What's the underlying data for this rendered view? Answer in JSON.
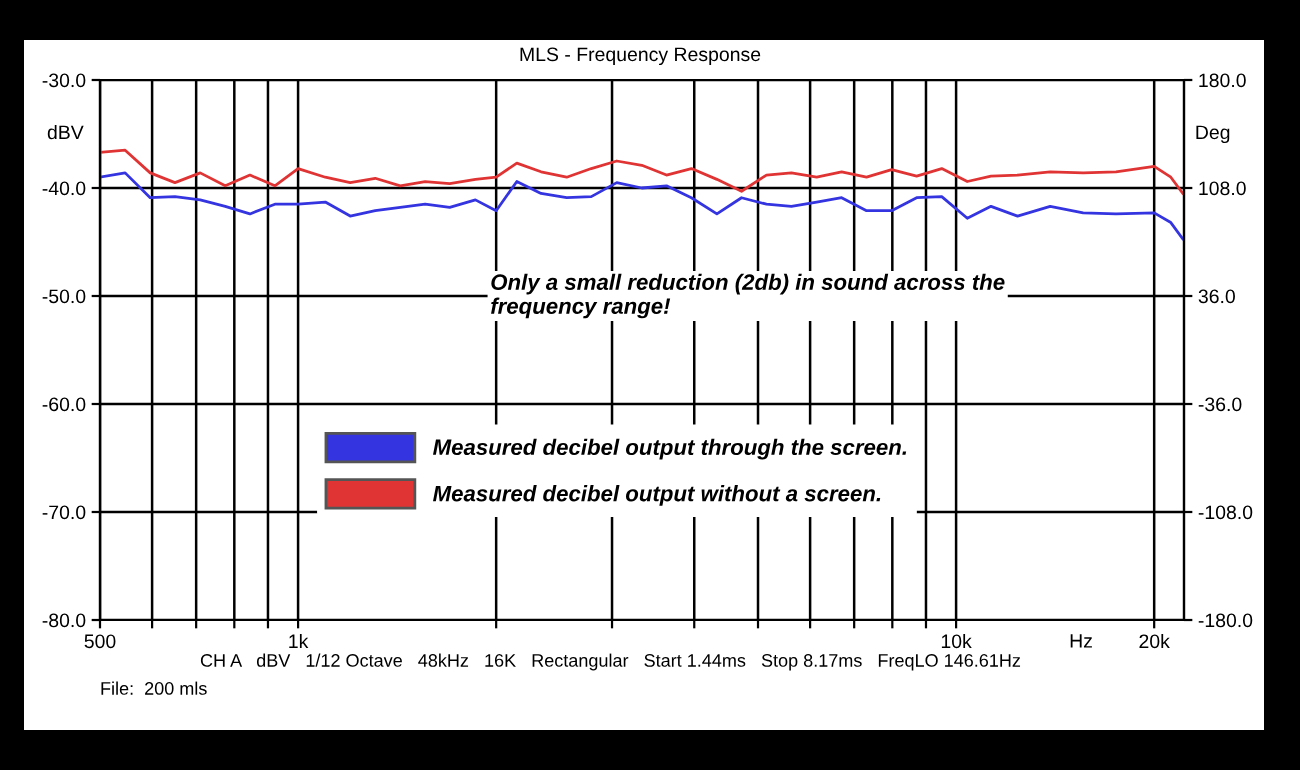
{
  "chart_data": {
    "type": "line",
    "title": "MLS - Frequency Response",
    "ylabel": "dBV",
    "y2label": "Deg",
    "xlabel": "Hz",
    "x": [
      500,
      546,
      596,
      650,
      710,
      775,
      845,
      922,
      1000,
      1100,
      1200,
      1310,
      1430,
      1560,
      1700,
      1860,
      2000,
      2150,
      2340,
      2560,
      2790,
      3050,
      3330,
      3630,
      3960,
      4330,
      4720,
      5150,
      5620,
      6140,
      6700,
      7310,
      7980,
      8710,
      9510,
      10400,
      11300,
      12400,
      13900,
      15600,
      17500,
      20000,
      21200,
      22100
    ],
    "series": [
      {
        "name": "Measured decibel output through the screen.",
        "color": "#3434e0",
        "values": [
          -39.0,
          -38.6,
          -40.9,
          -40.8,
          -41.1,
          -41.7,
          -42.4,
          -41.5,
          -41.5,
          -41.3,
          -42.6,
          -42.1,
          -41.8,
          -41.5,
          -41.8,
          -41.1,
          -42.1,
          -39.4,
          -40.5,
          -40.9,
          -40.8,
          -39.5,
          -40.0,
          -39.8,
          -40.9,
          -42.4,
          -40.9,
          -41.5,
          -41.7,
          -41.3,
          -40.9,
          -42.1,
          -42.1,
          -40.9,
          -40.8,
          -42.8,
          -41.7,
          -42.6,
          -41.7,
          -42.3,
          -42.4,
          -42.3,
          -43.2,
          -44.7
        ]
      },
      {
        "name": "Measured decibel output without a screen.",
        "color": "#e03434",
        "values": [
          -36.7,
          -36.5,
          -38.6,
          -39.5,
          -38.6,
          -39.8,
          -38.8,
          -39.8,
          -38.2,
          -39.0,
          -39.5,
          -39.1,
          -39.8,
          -39.4,
          -39.6,
          -39.2,
          -39.0,
          -37.7,
          -38.5,
          -39.0,
          -38.2,
          -37.5,
          -37.9,
          -38.8,
          -38.2,
          -39.2,
          -40.3,
          -38.8,
          -38.6,
          -39.0,
          -38.5,
          -39.0,
          -38.3,
          -38.9,
          -38.2,
          -39.4,
          -38.9,
          -38.8,
          -38.5,
          -38.6,
          -38.5,
          -38.0,
          -39.0,
          -40.5
        ]
      }
    ],
    "log": "x",
    "xlim": [
      500,
      22200
    ],
    "xticks": [
      500,
      {
        "value": 600,
        "label": null
      },
      {
        "value": 700,
        "label": null
      },
      {
        "value": 800,
        "label": null
      },
      {
        "value": 900,
        "label": null
      },
      {
        "value": 1000,
        "label": "1k"
      },
      {
        "value": 2000,
        "label": null
      },
      {
        "value": 3000,
        "label": null
      },
      {
        "value": 4000,
        "label": null
      },
      {
        "value": 5000,
        "label": null
      },
      {
        "value": 6000,
        "label": null
      },
      {
        "value": 7000,
        "label": null
      },
      {
        "value": 8000,
        "label": null
      },
      {
        "value": 9000,
        "label": null
      },
      {
        "value": 10000,
        "label": "10k"
      },
      {
        "value": 20000,
        "label": "20k"
      }
    ],
    "ylim": [
      -80,
      -30
    ],
    "yticks": [
      {
        "value": -80,
        "label": "-80.0"
      },
      {
        "value": -70,
        "label": "-70.0"
      },
      {
        "value": -60,
        "label": "-60.0"
      },
      {
        "value": -50,
        "label": "-50.0"
      },
      {
        "value": -40,
        "label": "-40.0"
      },
      {
        "value": -30,
        "label": "-30.0"
      }
    ],
    "y2lim": [
      -180,
      180
    ],
    "y2ticks": [
      {
        "value": -180,
        "label": "-180.0"
      },
      {
        "value": -108,
        "label": "-108.0"
      },
      {
        "value": -36,
        "label": "-36.0"
      },
      {
        "value": 36,
        "label": "36.0"
      },
      {
        "value": 108,
        "label": "108.0"
      },
      {
        "value": 180,
        "label": "180.0"
      }
    ],
    "grid": true,
    "legend": "bottom",
    "marker": "none",
    "line_style": "solid",
    "annotations": [
      "Only a small reduction (2db) in sound across the\nfrequency range!",
      "CH A   dBV   1/12 Octave   48kHz   16K   Rectangular   Start 1.44ms   Stop 8.17ms   FreqLO 146.61Hz",
      "File:  200 mls"
    ]
  }
}
